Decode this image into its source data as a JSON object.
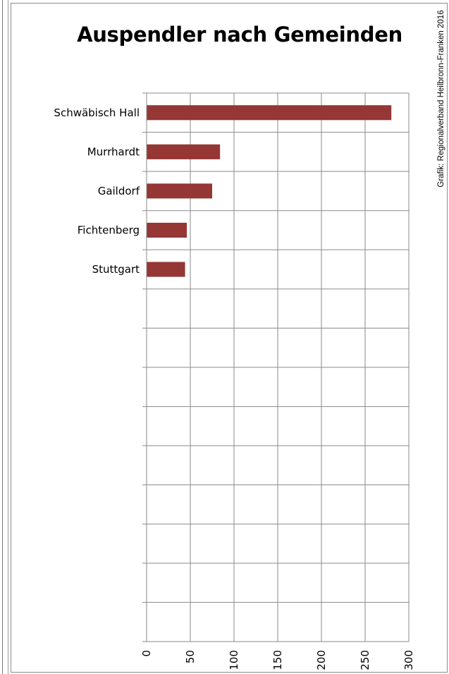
{
  "chart_data": {
    "type": "bar",
    "orientation": "horizontal",
    "title": "Auspendler nach Gemeinden",
    "credit": "Grafik: Regionalverband Heilbronn-Franken 2016",
    "categories": [
      "Schwäbisch Hall",
      "Murrhardt",
      "Gaildorf",
      "Fichtenberg",
      "Stuttgart"
    ],
    "values": [
      280,
      84,
      75,
      46,
      44
    ],
    "xlim": [
      0,
      300
    ],
    "xticks": [
      "0",
      "50",
      "100",
      "150",
      "200",
      "250",
      "300"
    ],
    "category_slots": 14,
    "grid": true,
    "bar_color": "#953735",
    "xlabel": "",
    "ylabel": ""
  }
}
